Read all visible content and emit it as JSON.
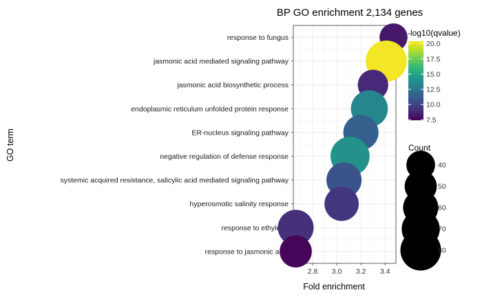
{
  "chart_data": {
    "type": "scatter",
    "title": "BP GO enrichment 2,134 genes",
    "xlabel": "Fold enrichment",
    "ylabel": "GO term",
    "xlim": [
      2.64,
      3.49
    ],
    "x_ticks": [
      2.8,
      3.0,
      3.2,
      3.4
    ],
    "x_tick_labels": [
      "2.8",
      "3.0",
      "3.2",
      "3.4"
    ],
    "grid": true,
    "legend_placement": "right",
    "points": [
      {
        "term": "response to fungus",
        "fold_enrichment": 3.47,
        "neg_log10_q": 8.3,
        "count": 38
      },
      {
        "term": "jasmonic acid mediated signaling pathway",
        "fold_enrichment": 3.41,
        "neg_log10_q": 20.2,
        "count": 82
      },
      {
        "term": "jasmonic acid biosynthetic process",
        "fold_enrichment": 3.3,
        "neg_log10_q": 8.9,
        "count": 45
      },
      {
        "term": "endoplasmic reticulum unfolded protein response",
        "fold_enrichment": 3.27,
        "neg_log10_q": 13.4,
        "count": 66
      },
      {
        "term": "ER-nucleus signaling pathway",
        "fold_enrichment": 3.2,
        "neg_log10_q": 11.3,
        "count": 60
      },
      {
        "term": "negative regulation of defense response",
        "fold_enrichment": 3.11,
        "neg_log10_q": 14.0,
        "count": 74
      },
      {
        "term": "systemic acquired resistance, salicylic acid mediated signaling pathway",
        "fold_enrichment": 3.06,
        "neg_log10_q": 10.8,
        "count": 60
      },
      {
        "term": "hyperosmotic salinity response",
        "fold_enrichment": 3.04,
        "neg_log10_q": 9.4,
        "count": 57
      },
      {
        "term": "response to ethylene",
        "fold_enrichment": 2.66,
        "neg_log10_q": 9.2,
        "count": 62
      },
      {
        "term": "response to jasmonic acid",
        "fold_enrichment": 2.66,
        "neg_log10_q": 7.6,
        "count": 50
      }
    ],
    "color_legend": {
      "title": "-log10(qvalue)",
      "min": 7.4,
      "max": 20.4,
      "ticks": [
        20.0,
        17.5,
        15.0,
        12.5,
        10.0,
        7.5
      ],
      "tick_labels": [
        "20.0",
        "17.5",
        "15.0",
        "12.5",
        "10.0",
        "7.5"
      ],
      "palette": [
        "#440154",
        "#482878",
        "#3e4989",
        "#31688e",
        "#26828e",
        "#1f9e89",
        "#35b779",
        "#6ece58",
        "#b5de2b",
        "#fde725"
      ]
    },
    "size_legend": {
      "title": "Count",
      "values": [
        40,
        50,
        60,
        70,
        80
      ],
      "labels": [
        "40",
        "50",
        "60",
        "70",
        "80"
      ]
    }
  }
}
